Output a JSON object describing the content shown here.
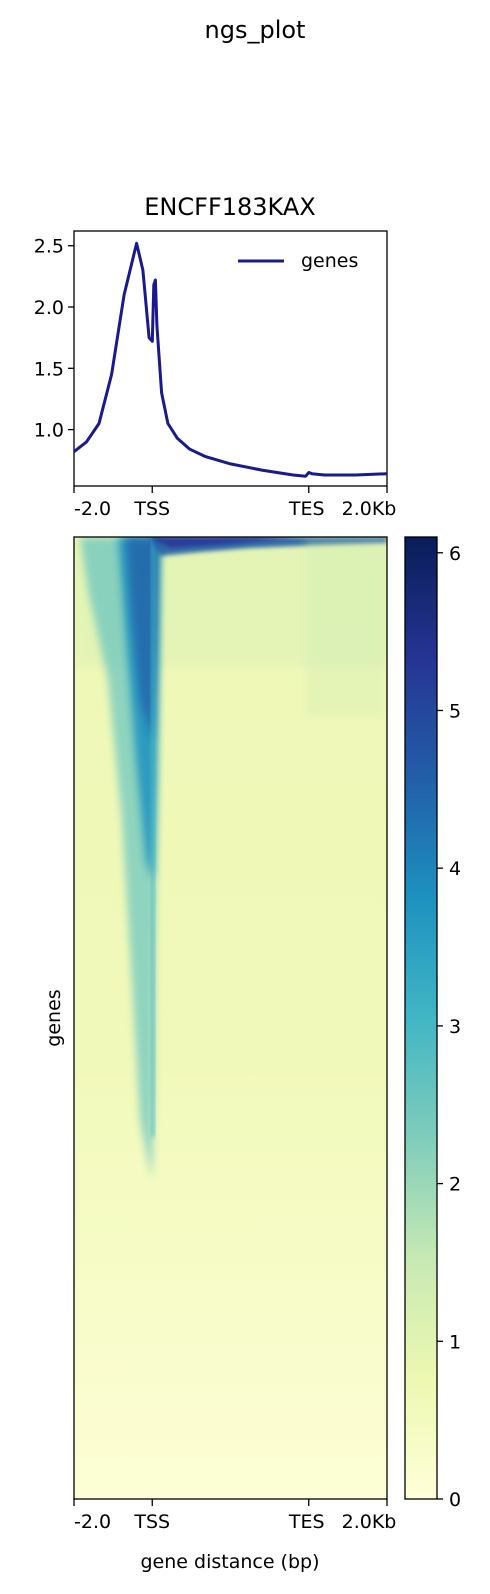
{
  "figure": {
    "suptitle": "ngs_plot"
  },
  "chart_data": [
    {
      "type": "line",
      "title": "ENCFF183KAX",
      "xlabel": "",
      "ylabel": "",
      "x_ticks": [
        "-2.0",
        "TSS",
        "TES",
        "2.0Kb"
      ],
      "x_tick_positions": [
        0,
        0.25,
        0.75,
        1.0
      ],
      "y_ticks": [
        1.0,
        1.5,
        2.0,
        2.5
      ],
      "ylim": [
        0.54,
        2.62
      ],
      "legend": {
        "placement": "top-right"
      },
      "series": [
        {
          "name": "genes",
          "color": "#1a1a8c",
          "x": [
            0.0,
            0.04,
            0.08,
            0.12,
            0.16,
            0.2,
            0.22,
            0.24,
            0.25,
            0.255,
            0.26,
            0.265,
            0.28,
            0.3,
            0.33,
            0.37,
            0.42,
            0.5,
            0.6,
            0.7,
            0.74,
            0.75,
            0.76,
            0.8,
            0.9,
            1.0
          ],
          "values": [
            0.82,
            0.9,
            1.05,
            1.45,
            2.1,
            2.52,
            2.3,
            1.75,
            1.72,
            2.18,
            2.22,
            1.85,
            1.3,
            1.05,
            0.93,
            0.84,
            0.78,
            0.72,
            0.67,
            0.63,
            0.62,
            0.65,
            0.64,
            0.63,
            0.63,
            0.64
          ]
        }
      ]
    },
    {
      "type": "heatmap",
      "xlabel": "gene distance (bp)",
      "ylabel": "genes",
      "x_ticks": [
        "-2.0",
        "TSS",
        "TES",
        "2.0Kb"
      ],
      "x_tick_positions": [
        0,
        0.25,
        0.75,
        1.0
      ],
      "colorbar": {
        "ticks": [
          0,
          1,
          2,
          3,
          4,
          5,
          6
        ],
        "range": [
          0,
          6.1
        ],
        "colormap": "YlGnBu",
        "colors": [
          "#ffffd9",
          "#edf8b1",
          "#c7e9b4",
          "#7fcdbb",
          "#41b6c4",
          "#1d91c0",
          "#225ea8",
          "#253494",
          "#081d58"
        ]
      }
    }
  ]
}
